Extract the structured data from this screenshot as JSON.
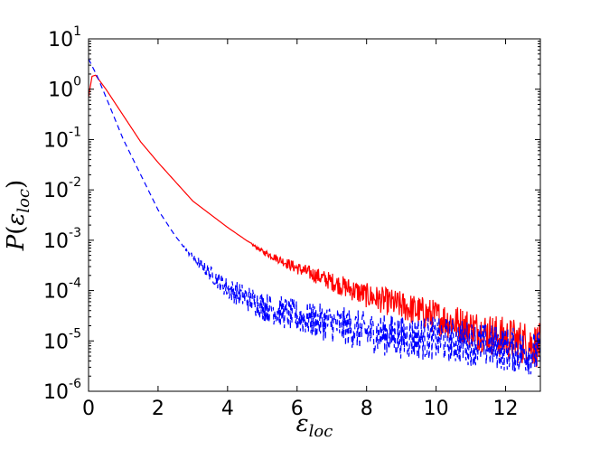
{
  "chart_data": {
    "type": "line",
    "title": "",
    "xlabel": {
      "base": "ε",
      "sub": "loc"
    },
    "ylabel": {
      "func": "P",
      "var": "ε",
      "sub": "loc"
    },
    "xlim": [
      0,
      13
    ],
    "ylim": [
      1e-06,
      10
    ],
    "y_scale": "log",
    "grid": false,
    "x_ticks": [
      "0",
      "2",
      "4",
      "6",
      "8",
      "10",
      "12"
    ],
    "x_tick_values": [
      0,
      2,
      4,
      6,
      8,
      10,
      12
    ],
    "y_ticks": [
      {
        "base": "10",
        "exp": "-6",
        "value": 1e-06
      },
      {
        "base": "10",
        "exp": "-5",
        "value": 1e-05
      },
      {
        "base": "10",
        "exp": "-4",
        "value": 0.0001
      },
      {
        "base": "10",
        "exp": "-3",
        "value": 0.001
      },
      {
        "base": "10",
        "exp": "-2",
        "value": 0.01
      },
      {
        "base": "10",
        "exp": "-1",
        "value": 0.1
      },
      {
        "base": "10",
        "exp": "0",
        "value": 1
      },
      {
        "base": "10",
        "exp": "1",
        "value": 10
      }
    ],
    "series": [
      {
        "color": "#ff0000",
        "style": "solid",
        "points": [
          [
            0.0,
            0.7
          ],
          [
            0.1,
            1.8
          ],
          [
            0.2,
            1.9
          ],
          [
            0.5,
            1.0
          ],
          [
            1.0,
            0.3
          ],
          [
            1.5,
            0.09
          ],
          [
            2.0,
            0.035
          ],
          [
            3.0,
            0.006
          ],
          [
            4.0,
            0.0018
          ],
          [
            5.0,
            0.0006
          ],
          [
            6.0,
            0.00028
          ],
          [
            7.0,
            0.00015
          ],
          [
            8.0,
            8e-05
          ],
          [
            9.0,
            5e-05
          ],
          [
            10.0,
            3e-05
          ],
          [
            11.0,
            1.8e-05
          ],
          [
            12.0,
            1.1e-05
          ],
          [
            13.0,
            8e-06
          ]
        ]
      },
      {
        "color": "#0000ff",
        "style": "dashed",
        "points": [
          [
            0.0,
            4.0
          ],
          [
            0.25,
            1.8
          ],
          [
            0.5,
            0.7
          ],
          [
            1.0,
            0.1
          ],
          [
            1.5,
            0.02
          ],
          [
            2.0,
            0.004
          ],
          [
            2.5,
            0.0012
          ],
          [
            3.0,
            0.00045
          ],
          [
            3.5,
            0.00022
          ],
          [
            4.0,
            0.00011
          ],
          [
            5.0,
            5e-05
          ],
          [
            6.0,
            3e-05
          ],
          [
            7.0,
            2.2e-05
          ],
          [
            8.0,
            1.5e-05
          ],
          [
            9.0,
            1.2e-05
          ],
          [
            10.0,
            1.1e-05
          ],
          [
            11.0,
            9e-06
          ],
          [
            12.0,
            7e-06
          ],
          [
            13.0,
            5.5e-06
          ]
        ]
      }
    ]
  }
}
